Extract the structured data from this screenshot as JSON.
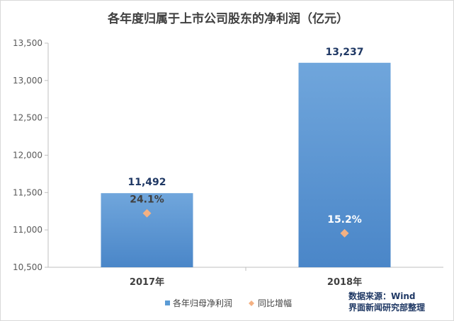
{
  "chart_data": {
    "type": "bar",
    "title": "各年度归属于上市公司股东的净利润（亿元）",
    "categories": [
      "2017年",
      "2018年"
    ],
    "series": [
      {
        "name": "各年归母净利润",
        "kind": "bar",
        "values": [
          11492,
          13237
        ],
        "value_labels": [
          "11,492",
          "13,237"
        ],
        "color": "#5b9bd5"
      },
      {
        "name": "同比增幅",
        "kind": "marker",
        "values": [
          24.1,
          15.2
        ],
        "value_labels": [
          "24.1%",
          "15.2%"
        ],
        "color": "#f4b183"
      }
    ],
    "ylim": [
      10500,
      13500
    ],
    "yticks": [
      10500,
      11000,
      11500,
      12000,
      12500,
      13000,
      13500
    ],
    "ytick_labels": [
      "10,500",
      "11,000",
      "11,500",
      "12,000",
      "12,500",
      "13,000",
      "13,500"
    ],
    "marker_axis_lim": [
      0,
      100
    ],
    "xlabel": "",
    "ylabel": "",
    "grid": false,
    "legend_position": "bottom"
  },
  "source_note": {
    "line1": "数据来源：Wind",
    "line2": "界面新闻研究部整理"
  }
}
